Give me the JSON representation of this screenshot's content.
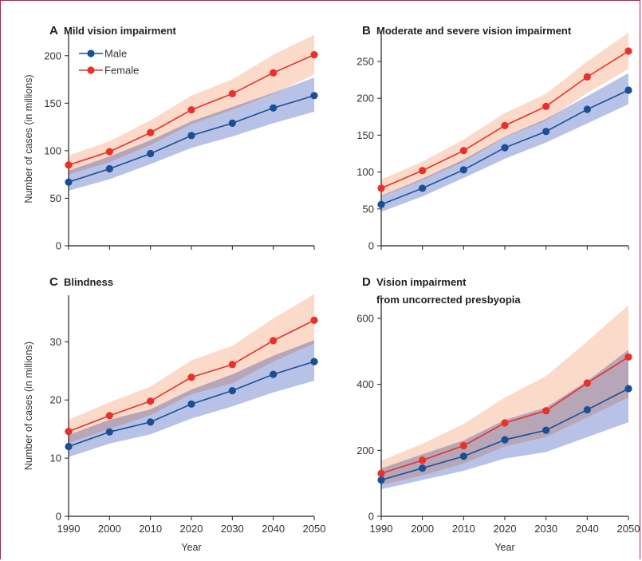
{
  "colors": {
    "male": "#1a4f96",
    "female": "#e8312b",
    "male_band": "#b4bfe6",
    "female_band": "#fbcdb8",
    "overlap_band": "#c0a0b8",
    "frame": "#c2185b"
  },
  "legend": {
    "male_label": "Male",
    "female_label": "Female"
  },
  "chart_data": [
    {
      "id": "A",
      "type": "line",
      "letter": "A",
      "title": "Mild vision impairment",
      "title_line2": "",
      "xlabel": "",
      "ylabel": "Number of cases (in millions)",
      "x": [
        1990,
        2000,
        2010,
        2020,
        2030,
        2040,
        2050
      ],
      "xlim": [
        1990,
        2050
      ],
      "ylim": [
        0,
        225
      ],
      "yticks": [
        0,
        50,
        100,
        150,
        200
      ],
      "series": [
        {
          "name": "Male",
          "values": [
            67,
            81,
            97,
            116,
            129,
            145,
            158
          ],
          "lower": [
            58,
            70,
            86,
            103,
            115,
            129,
            141
          ],
          "upper": [
            79,
            94,
            111,
            131,
            146,
            161,
            177
          ]
        },
        {
          "name": "Female",
          "values": [
            85,
            99,
            119,
            143,
            160,
            182,
            201
          ],
          "lower": [
            75,
            88,
            106,
            128,
            143,
            160,
            180
          ],
          "upper": [
            95,
            110,
            132,
            158,
            175,
            201,
            222
          ]
        }
      ]
    },
    {
      "id": "B",
      "type": "line",
      "letter": "B",
      "title": "Moderate and severe vision impairment",
      "title_line2": "",
      "xlabel": "",
      "ylabel": "",
      "x": [
        1990,
        2000,
        2010,
        2020,
        2030,
        2040,
        2050
      ],
      "xlim": [
        1990,
        2050
      ],
      "ylim": [
        0,
        290
      ],
      "yticks": [
        0,
        50,
        100,
        150,
        200,
        250
      ],
      "series": [
        {
          "name": "Male",
          "values": [
            56,
            78,
            103,
            133,
            155,
            185,
            211
          ],
          "lower": [
            46,
            67,
            92,
            118,
            140,
            166,
            192
          ],
          "upper": [
            68,
            91,
            117,
            148,
            172,
            203,
            234
          ]
        },
        {
          "name": "Female",
          "values": [
            78,
            102,
            129,
            163,
            189,
            229,
            264
          ],
          "lower": [
            67,
            89,
            114,
            147,
            170,
            207,
            240
          ],
          "upper": [
            90,
            114,
            144,
            180,
            206,
            250,
            289
          ]
        }
      ]
    },
    {
      "id": "C",
      "type": "line",
      "letter": "C",
      "title": "Blindness",
      "title_line2": "",
      "xlabel": "Year",
      "ylabel": "Number of cases (in millions)",
      "x": [
        1990,
        2000,
        2010,
        2020,
        2030,
        2040,
        2050
      ],
      "xlim": [
        1990,
        2050
      ],
      "ylim": [
        0,
        38
      ],
      "yticks": [
        0,
        10,
        20,
        30
      ],
      "series": [
        {
          "name": "Male",
          "values": [
            12.0,
            14.5,
            16.2,
            19.3,
            21.6,
            24.4,
            26.6
          ],
          "lower": [
            10.2,
            12.5,
            14.1,
            16.8,
            18.9,
            21.3,
            23.3
          ],
          "upper": [
            14.0,
            16.6,
            18.4,
            21.8,
            24.4,
            27.6,
            30.3
          ]
        },
        {
          "name": "Female",
          "values": [
            14.6,
            17.3,
            19.8,
            23.9,
            26.1,
            30.2,
            33.7
          ],
          "lower": [
            12.6,
            15.0,
            17.4,
            21.0,
            22.9,
            26.6,
            29.7
          ],
          "upper": [
            16.6,
            19.6,
            22.3,
            26.8,
            29.3,
            34.0,
            38.2
          ]
        }
      ]
    },
    {
      "id": "D",
      "type": "line",
      "letter": "D",
      "title": "Vision impairment",
      "title_line2": "from uncorrected presbyopia",
      "xlabel": "Year",
      "ylabel": "",
      "x": [
        1990,
        2000,
        2010,
        2020,
        2030,
        2040,
        2050
      ],
      "xlim": [
        1990,
        2050
      ],
      "ylim": [
        0,
        670
      ],
      "yticks": [
        0,
        200,
        400,
        600
      ],
      "series": [
        {
          "name": "Male",
          "values": [
            110,
            146,
            182,
            232,
            261,
            323,
            387
          ],
          "lower": [
            82,
            110,
            138,
            175,
            195,
            240,
            285
          ],
          "upper": [
            145,
            188,
            230,
            292,
            330,
            410,
            505
          ]
        },
        {
          "name": "Female",
          "values": [
            130,
            170,
            214,
            283,
            320,
            404,
            483
          ],
          "lower": [
            95,
            124,
            160,
            212,
            240,
            300,
            360
          ],
          "upper": [
            168,
            220,
            280,
            360,
            425,
            530,
            640
          ]
        }
      ]
    }
  ],
  "x_tick_labels": [
    "1990",
    "2000",
    "2010",
    "2020",
    "2030",
    "2040",
    "2050"
  ]
}
